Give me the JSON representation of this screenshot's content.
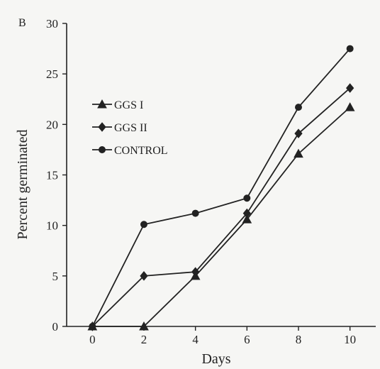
{
  "chart_data": {
    "type": "line",
    "panel_label": "B",
    "xlabel": "Days",
    "ylabel": "Percent germinated",
    "x": [
      0,
      2,
      4,
      6,
      8,
      10
    ],
    "x_ticks": [
      "0",
      "2",
      "4",
      "6",
      "8",
      "10"
    ],
    "y_ticks": [
      "0",
      "5",
      "10",
      "15",
      "20",
      "25",
      "30"
    ],
    "xlim": [
      -1,
      11
    ],
    "ylim": [
      0,
      30
    ],
    "grid": false,
    "legend_position": "left",
    "series": [
      {
        "name": "GGS I",
        "marker": "triangle",
        "values": [
          0,
          0,
          5.0,
          10.6,
          17.1,
          21.7
        ]
      },
      {
        "name": "GGS II",
        "marker": "diamond",
        "values": [
          0,
          5.0,
          5.4,
          11.2,
          19.1,
          23.6
        ]
      },
      {
        "name": "CONTROL",
        "marker": "circle",
        "values": [
          0,
          10.1,
          11.2,
          12.7,
          21.7,
          27.5
        ]
      }
    ],
    "colors": {
      "ink": "#222222",
      "background": "#f6f6f4"
    }
  }
}
